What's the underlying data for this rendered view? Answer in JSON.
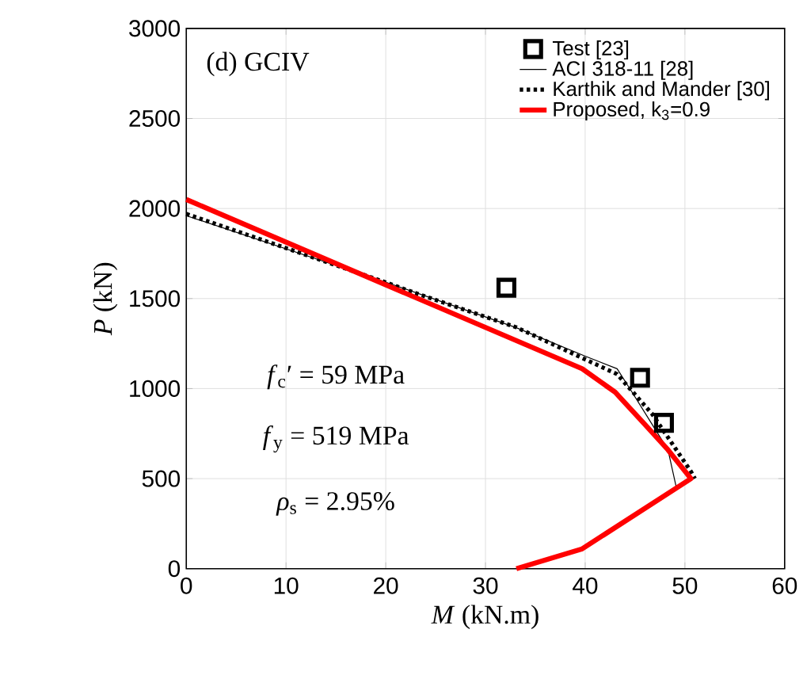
{
  "chart_data": {
    "type": "line",
    "xlabel": "*M* (kN.m)",
    "ylabel": "*P* (kN)",
    "xlim": [
      0,
      60
    ],
    "ylim": [
      0,
      3000
    ],
    "xticks": [
      0,
      10,
      20,
      30,
      40,
      50,
      60
    ],
    "yticks": [
      0,
      500,
      1000,
      1500,
      2000,
      2500,
      3000
    ],
    "grid": true,
    "legend": "top right",
    "annotations": [
      "(d) GCIV",
      "*f*$_{c}$′ = 59 MPa",
      "*f*$_{y}$ = 519 MPa",
      "*ρ*$_{s}$ = 2.95%"
    ],
    "series": [
      {
        "name": "Test [23]",
        "type": "scatter",
        "marker": "square",
        "color": "#000000",
        "x": [
          32.1,
          45.5,
          47.9
        ],
        "values": [
          1560,
          1060,
          810
        ]
      },
      {
        "name": "ACI 318-11 [28]",
        "line_style": "solid",
        "color": "#000000",
        "x": [
          0,
          19,
          33,
          40,
          43.2,
          44.7,
          48.3,
          49.1
        ],
        "values": [
          1960,
          1610,
          1340,
          1180,
          1110,
          980,
          660,
          460
        ]
      },
      {
        "name": "Karthik and Mander [30]",
        "line_style": "dotted",
        "color": "#000000",
        "x": [
          0,
          20,
          23,
          33.1,
          39.7,
          43.2,
          46.7,
          50.6,
          51
        ],
        "values": [
          1970,
          1590,
          1530,
          1340,
          1170,
          1080,
          860,
          540,
          500
        ]
      },
      {
        "name": "Proposed, k$_{3}$=0.9",
        "line_style": "solid",
        "color": "#ff0000",
        "x": [
          0,
          39.7,
          43,
          46,
          48.3,
          50.6,
          39.7,
          33.1
        ],
        "values": [
          2050,
          1110,
          980,
          800,
          660,
          500,
          110,
          0
        ]
      }
    ]
  }
}
